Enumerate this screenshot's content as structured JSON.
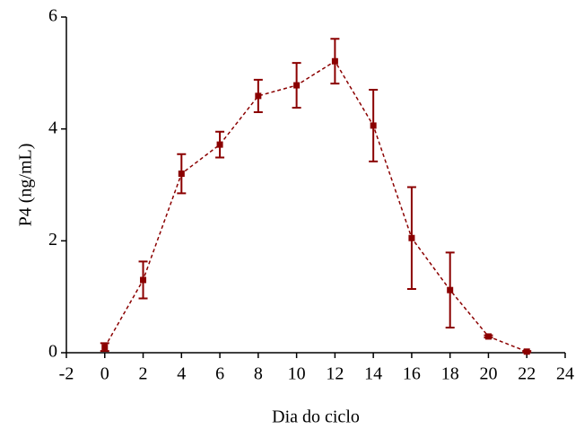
{
  "chart_data": {
    "type": "line",
    "xlabel": "Dia do ciclo",
    "ylabel": "P4 (ng/mL)",
    "x": [
      0,
      2,
      4,
      6,
      8,
      10,
      12,
      14,
      16,
      18,
      20,
      22
    ],
    "values": [
      0.1,
      1.3,
      3.2,
      3.72,
      4.59,
      4.78,
      5.21,
      4.06,
      2.05,
      1.12,
      0.29,
      0.02
    ],
    "errors": [
      0.07,
      0.33,
      0.35,
      0.23,
      0.29,
      0.4,
      0.4,
      0.64,
      0.91,
      0.67,
      0.02,
      0.01
    ],
    "color": "#8b0000",
    "xlim": [
      -2,
      24
    ],
    "xticks": [
      -2,
      0,
      2,
      4,
      6,
      8,
      10,
      12,
      14,
      16,
      18,
      20,
      22,
      24
    ],
    "ylim": [
      0,
      6
    ],
    "yticks": [
      0,
      2,
      4,
      6
    ]
  }
}
